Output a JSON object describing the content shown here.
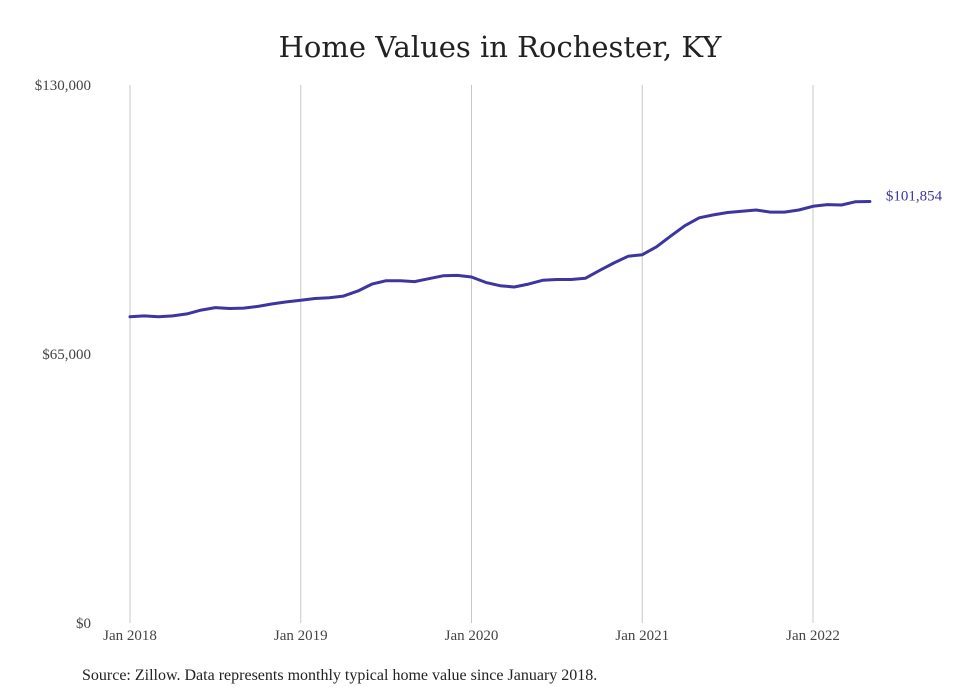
{
  "chart_data": {
    "type": "line",
    "title": "Home Values in Rochester, KY",
    "xlabel": "",
    "ylabel": "",
    "source": "Source: Zillow. Data represents monthly typical home value since January 2018.",
    "x_ticks": [
      "Jan 2018",
      "Jan 2019",
      "Jan 2020",
      "Jan 2021",
      "Jan 2022"
    ],
    "y_ticks": [
      0,
      65000,
      130000
    ],
    "y_tick_labels": [
      "$0",
      "$65,000",
      "$130,000"
    ],
    "ylim": [
      0,
      130000
    ],
    "xlim": [
      "2018-01",
      "2022-05"
    ],
    "grid": "vertical",
    "line_color": "#3d35a0",
    "end_label": "$101,854",
    "series": [
      {
        "x": [
          "2018-01",
          "2018-02",
          "2018-03",
          "2018-04",
          "2018-05",
          "2018-06",
          "2018-07",
          "2018-08",
          "2018-09",
          "2018-10",
          "2018-11",
          "2018-12",
          "2019-01",
          "2019-02",
          "2019-03",
          "2019-04",
          "2019-05",
          "2019-06",
          "2019-07",
          "2019-08",
          "2019-09",
          "2019-10",
          "2019-11",
          "2019-12",
          "2020-01",
          "2020-02",
          "2020-03",
          "2020-04",
          "2020-05",
          "2020-06",
          "2020-07",
          "2020-08",
          "2020-09",
          "2020-10",
          "2020-11",
          "2020-12",
          "2021-01",
          "2021-02",
          "2021-03",
          "2021-04",
          "2021-05",
          "2021-06",
          "2021-07",
          "2021-08",
          "2021-09",
          "2021-10",
          "2021-11",
          "2021-12",
          "2022-01",
          "2022-02",
          "2022-03",
          "2022-04",
          "2022-05"
        ],
        "values": [
          74000,
          74200,
          74000,
          74200,
          74700,
          75600,
          76200,
          76000,
          76100,
          76500,
          77100,
          77600,
          78000,
          78400,
          78600,
          79000,
          80200,
          81900,
          82700,
          82700,
          82500,
          83200,
          83900,
          84000,
          83600,
          82300,
          81500,
          81200,
          81900,
          82800,
          83000,
          83000,
          83300,
          85200,
          87000,
          88600,
          89000,
          90900,
          93500,
          96000,
          97900,
          98600,
          99200,
          99500,
          99800,
          99300,
          99300,
          99800,
          100700,
          101100,
          101000,
          101800,
          101854
        ]
      }
    ]
  }
}
